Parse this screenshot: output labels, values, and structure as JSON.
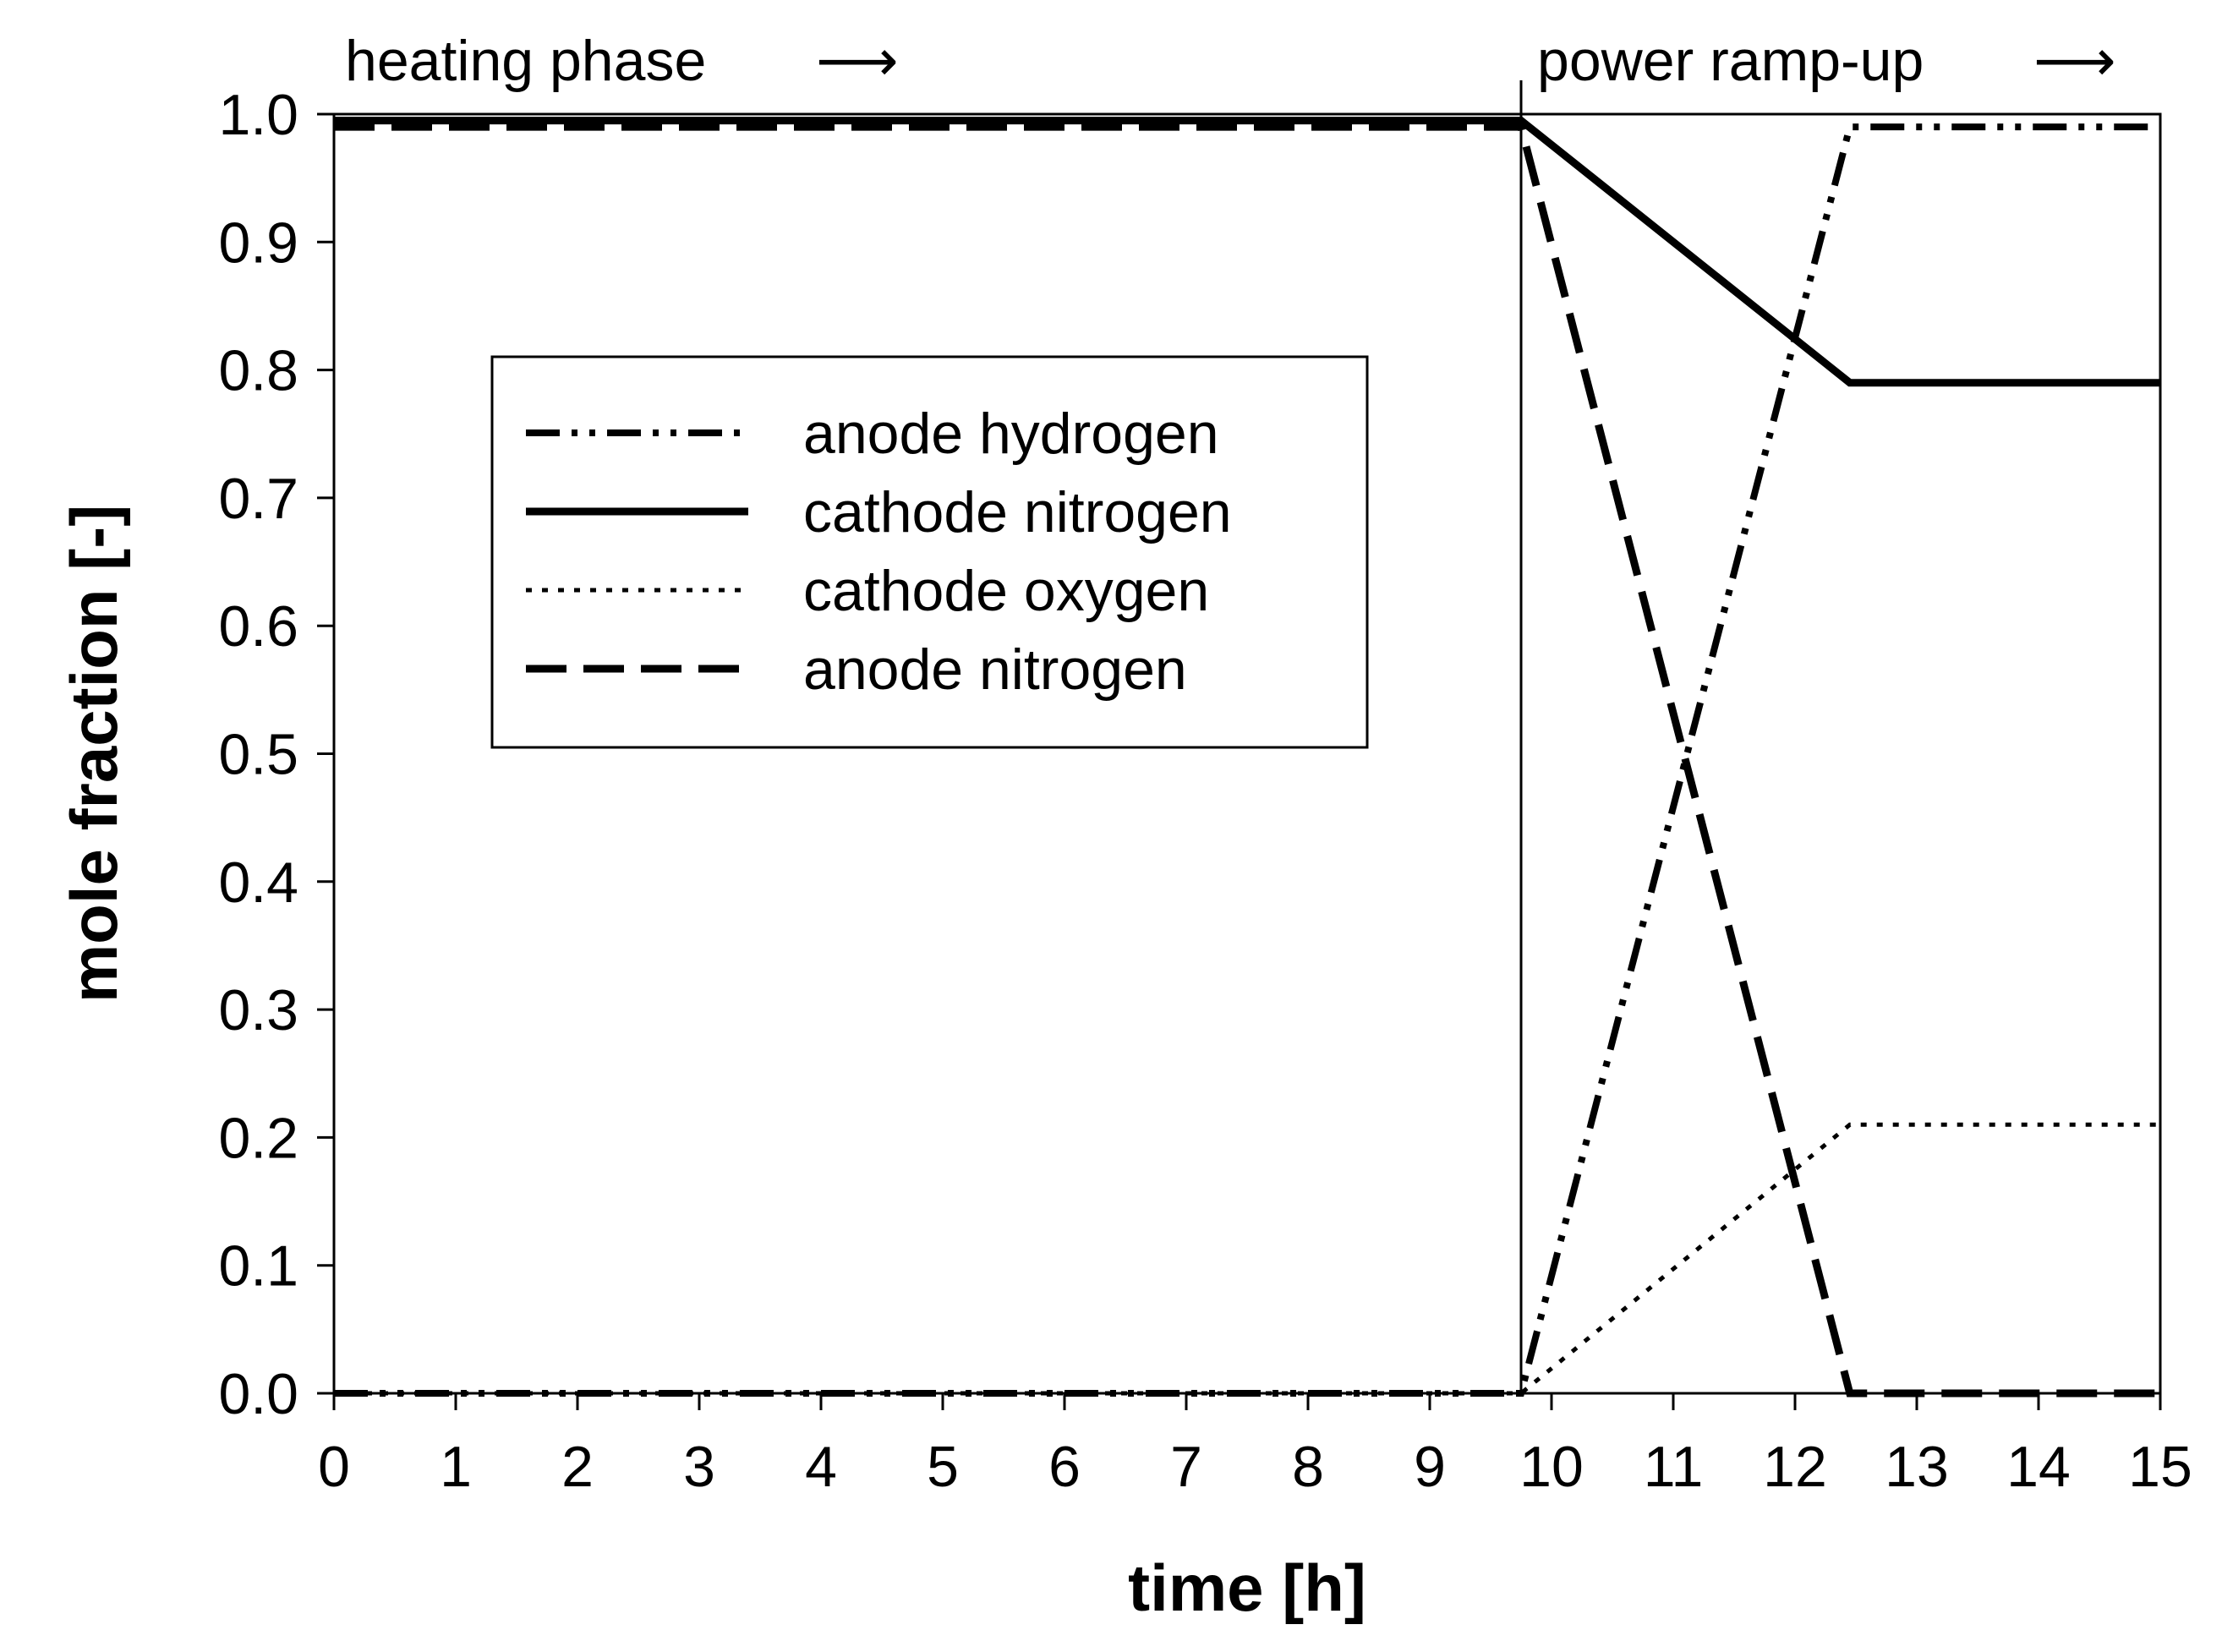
{
  "chart_data": {
    "type": "line",
    "title": "",
    "xlabel": "time [h]",
    "ylabel": "mole fraction [-]",
    "xlim": [
      0,
      15
    ],
    "ylim": [
      0,
      1.0
    ],
    "xticks": [
      "0",
      "1",
      "2",
      "3",
      "4",
      "5",
      "6",
      "7",
      "8",
      "9",
      "10",
      "11",
      "12",
      "13",
      "14",
      "15"
    ],
    "yticks": [
      "0.0",
      "0.1",
      "0.2",
      "0.3",
      "0.4",
      "0.5",
      "0.6",
      "0.7",
      "0.8",
      "0.9",
      "1.0"
    ],
    "grid": false,
    "legend_position": "upper-left",
    "phase_boundary_x": 9.75,
    "phases": [
      {
        "label": "heating phase",
        "arrow": "⟶"
      },
      {
        "label": "power ramp-up",
        "arrow": "⟶"
      }
    ],
    "series": [
      {
        "name": "anode hydrogen",
        "style": "dash-dot-dot",
        "points": [
          [
            0,
            0.0
          ],
          [
            9.75,
            0.0
          ],
          [
            12.45,
            0.99
          ],
          [
            15,
            0.99
          ]
        ]
      },
      {
        "name": "cathode nitrogen",
        "style": "solid",
        "points": [
          [
            0,
            0.995
          ],
          [
            9.75,
            0.995
          ],
          [
            12.45,
            0.79
          ],
          [
            15,
            0.79
          ]
        ]
      },
      {
        "name": "cathode oxygen",
        "style": "dotted",
        "points": [
          [
            0,
            0.0
          ],
          [
            9.75,
            0.0
          ],
          [
            12.45,
            0.21
          ],
          [
            15,
            0.21
          ]
        ]
      },
      {
        "name": "anode nitrogen",
        "style": "dashed",
        "points": [
          [
            0,
            0.99
          ],
          [
            9.75,
            0.99
          ],
          [
            12.45,
            0.0
          ],
          [
            15,
            0.0
          ]
        ]
      }
    ]
  }
}
